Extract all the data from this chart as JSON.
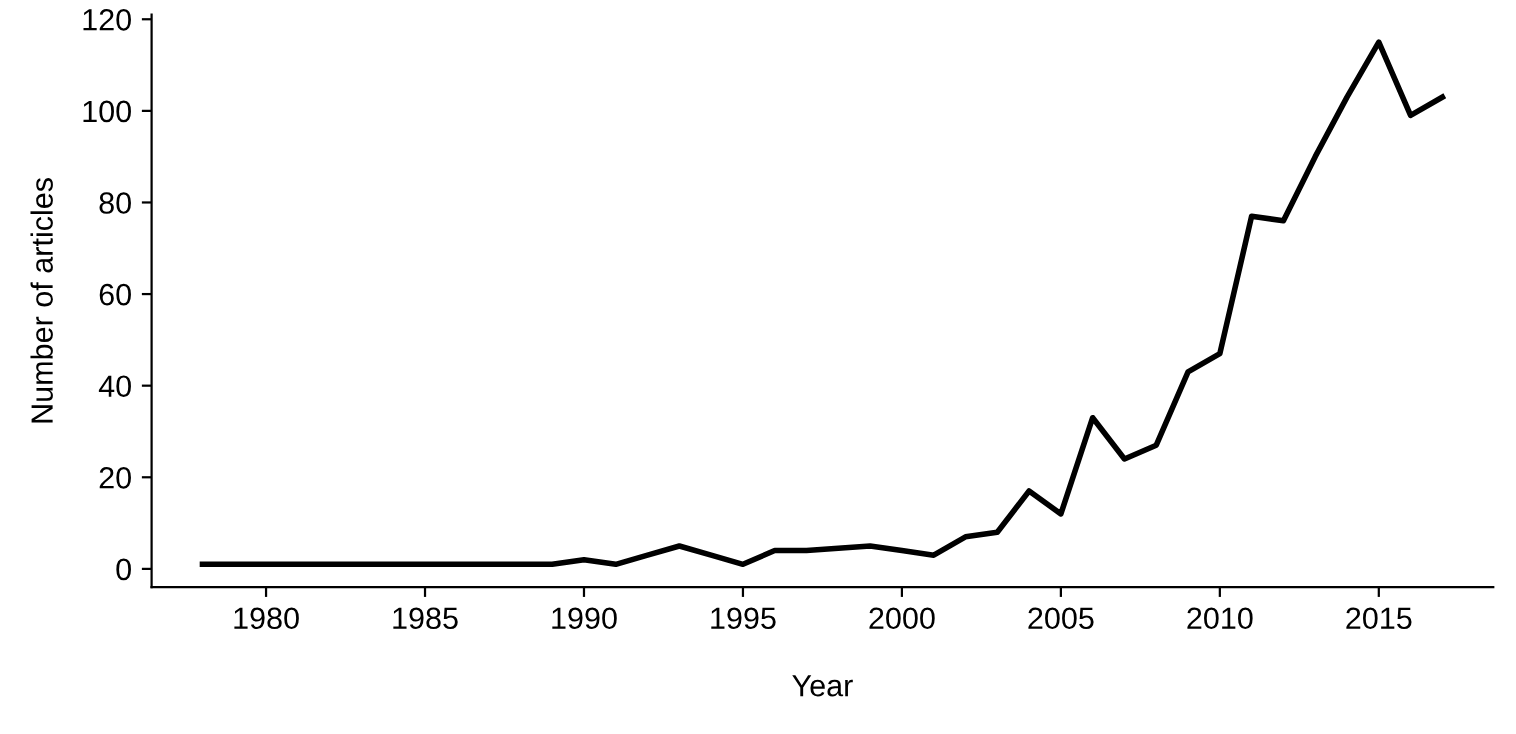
{
  "chart_data": {
    "type": "line",
    "xlabel": "Year",
    "ylabel": "Number of articles",
    "x": [
      1978,
      1979,
      1980,
      1981,
      1982,
      1983,
      1984,
      1985,
      1986,
      1987,
      1988,
      1989,
      1990,
      1991,
      1992,
      1993,
      1994,
      1995,
      1996,
      1997,
      1998,
      1999,
      2000,
      2001,
      2002,
      2003,
      2004,
      2005,
      2006,
      2007,
      2008,
      2009,
      2010,
      2011,
      2012,
      2013,
      2014,
      2015,
      2016,
      2017
    ],
    "series": [
      {
        "color": "#000000",
        "values": [
          1,
          1,
          1,
          1,
          1,
          1,
          1,
          1,
          1,
          1,
          1,
          1,
          2,
          1,
          3,
          5,
          3,
          1,
          4,
          4,
          4.5,
          5,
          4,
          3,
          7,
          8,
          17,
          12,
          33,
          24,
          27,
          43,
          47,
          77,
          76,
          90,
          103,
          115,
          99,
          103
        ]
      }
    ],
    "xlim": [
      1976.4,
      2018.6
    ],
    "ylim": [
      -4,
      121
    ],
    "xticks": [
      1980,
      1985,
      1990,
      1995,
      2000,
      2005,
      2010,
      2015
    ],
    "yticks": [
      0,
      20,
      40,
      60,
      80,
      100,
      120
    ],
    "grid": false,
    "legend": false,
    "marker": "none",
    "line_style": "solid"
  }
}
